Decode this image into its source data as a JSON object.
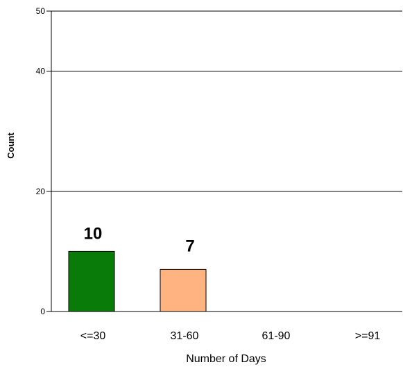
{
  "chart_data": {
    "type": "bar",
    "categories": [
      "<=30",
      "31-60",
      "61-90",
      ">=91"
    ],
    "values": [
      10,
      7,
      0,
      0
    ],
    "data_labels": [
      "10",
      "7",
      "",
      ""
    ],
    "bar_colors": [
      "#087b08",
      "#ffb380",
      "#087b08",
      "#087b08"
    ],
    "xlabel": "Number of Days",
    "ylabel": "Count",
    "ylim": [
      0,
      50
    ],
    "yticks": [
      0,
      20,
      40,
      50
    ],
    "grid": true,
    "legend": "none"
  }
}
